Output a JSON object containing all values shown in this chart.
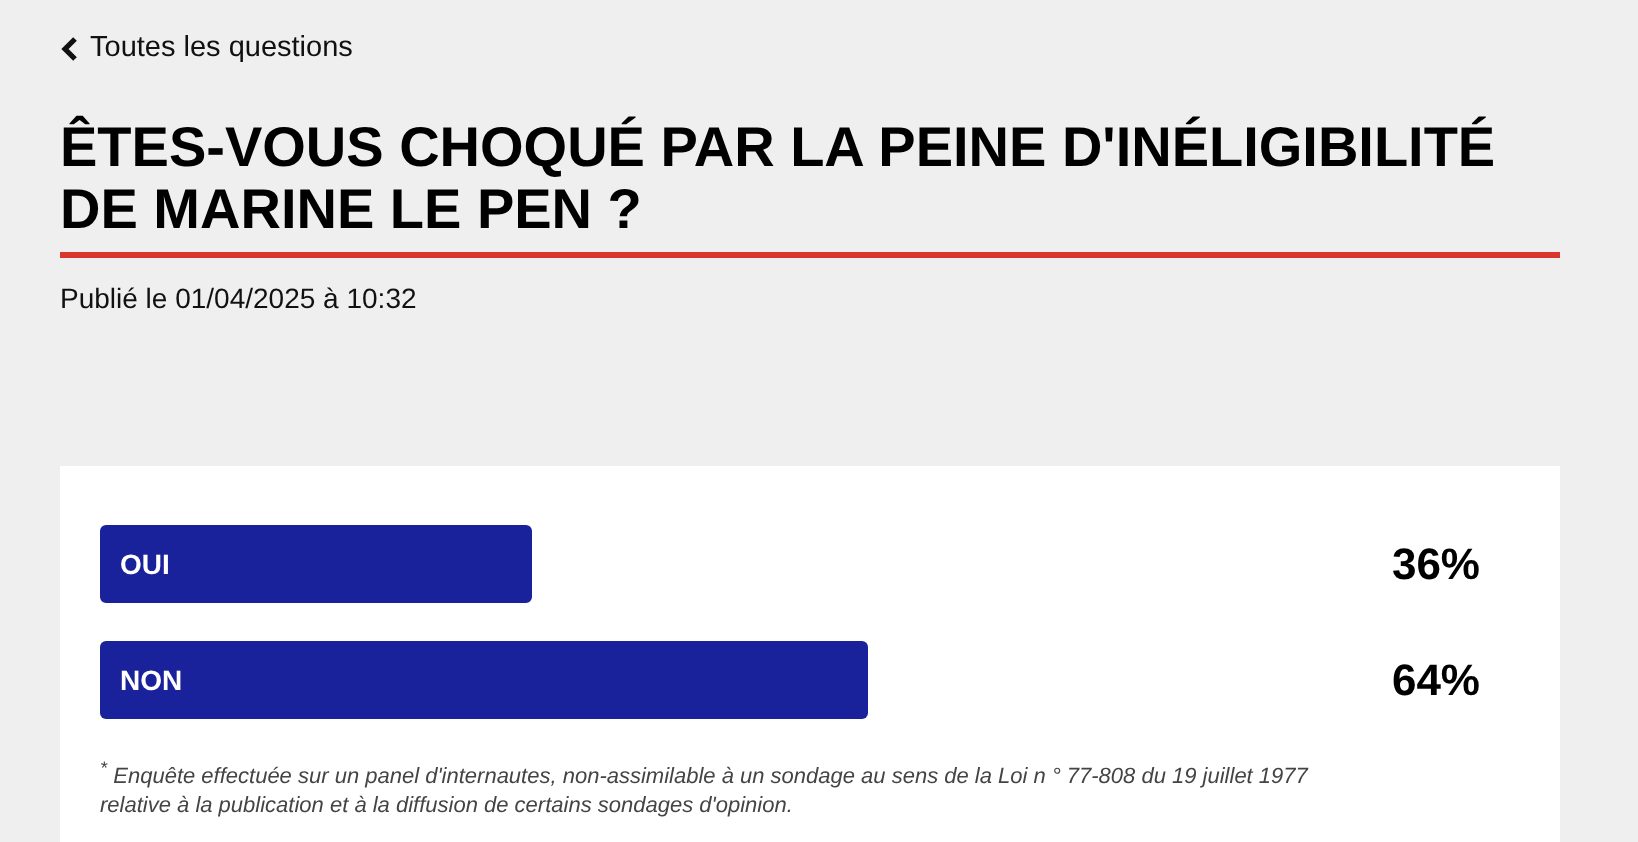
{
  "chart_data": {
    "type": "bar",
    "orientation": "horizontal",
    "title": "ÊTES-VOUS CHOQUÉ PAR LA PEINE D'INÉLIGIBILITÉ DE MARINE LE PEN ?",
    "subtitle": "Publié le 01/04/2025 à 10:32",
    "categories": [
      "OUI",
      "NON"
    ],
    "values": [
      36,
      64
    ],
    "value_labels": [
      "36%",
      "64%"
    ],
    "color": "#19229a",
    "tick_labels": "y",
    "grid": false,
    "legend": false,
    "annotations": [
      "Toutes les questions",
      "$^{*}$ Enquête effectuée sur un panel d'internautes, non-assimilable à un sondage au sens de la Loi n ° 77-808 du 19 juillet 1977 relative à la publication et à la diffusion de certains sondages d'opinion."
    ]
  }
}
